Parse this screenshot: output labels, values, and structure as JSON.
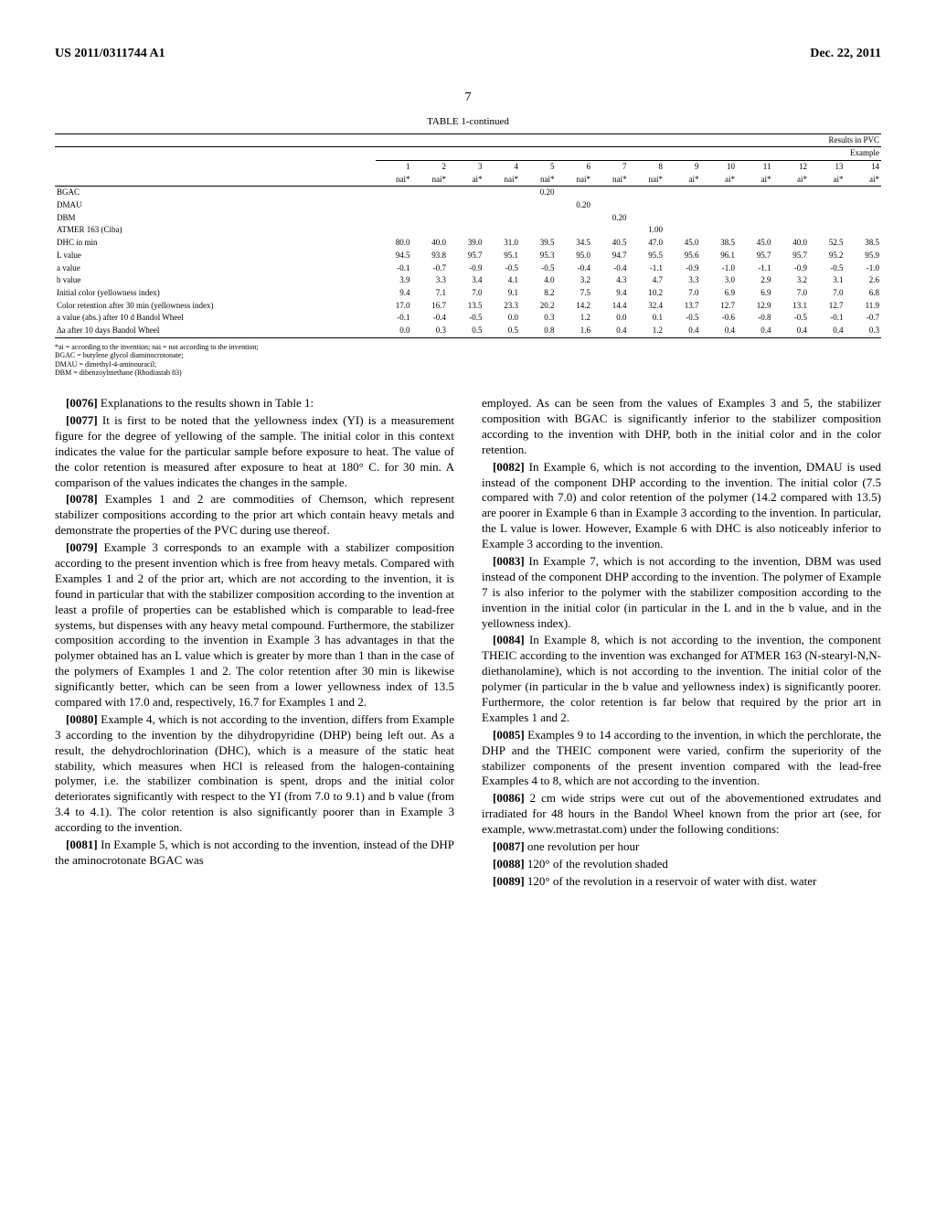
{
  "header": {
    "left": "US 2011/0311744 A1",
    "right": "Dec. 22, 2011"
  },
  "page_number": "7",
  "table": {
    "title": "TABLE 1-continued",
    "section_title": "Results in PVC",
    "example_header": "Example",
    "columns": [
      {
        "num": "1",
        "note": "nai*"
      },
      {
        "num": "2",
        "note": "nai*"
      },
      {
        "num": "3",
        "note": "ai*"
      },
      {
        "num": "4",
        "note": "nai*"
      },
      {
        "num": "5",
        "note": "nai*"
      },
      {
        "num": "6",
        "note": "nai*"
      },
      {
        "num": "7",
        "note": "nai*"
      },
      {
        "num": "8",
        "note": "nai*"
      },
      {
        "num": "9",
        "note": "ai*"
      },
      {
        "num": "10",
        "note": "ai*"
      },
      {
        "num": "11",
        "note": "ai*"
      },
      {
        "num": "12",
        "note": "ai*"
      },
      {
        "num": "13",
        "note": "ai*"
      },
      {
        "num": "14",
        "note": "ai*"
      }
    ],
    "rows": [
      {
        "label": "BGAC",
        "values": [
          "",
          "",
          "",
          "",
          "0.20",
          "",
          "",
          "",
          "",
          "",
          "",
          "",
          "",
          ""
        ]
      },
      {
        "label": "DMAU",
        "values": [
          "",
          "",
          "",
          "",
          "",
          "0.20",
          "",
          "",
          "",
          "",
          "",
          "",
          "",
          ""
        ]
      },
      {
        "label": "DBM",
        "values": [
          "",
          "",
          "",
          "",
          "",
          "",
          "0.20",
          "",
          "",
          "",
          "",
          "",
          "",
          ""
        ]
      },
      {
        "label": "ATMER 163 (Ciba)",
        "values": [
          "",
          "",
          "",
          "",
          "",
          "",
          "",
          "1.00",
          "",
          "",
          "",
          "",
          "",
          ""
        ]
      },
      {
        "label": "DHC in min",
        "values": [
          "80.0",
          "40.0",
          "39.0",
          "31.0",
          "39.5",
          "34.5",
          "40.5",
          "47.0",
          "45.0",
          "38.5",
          "45.0",
          "40.0",
          "52.5",
          "38.5"
        ]
      },
      {
        "label": "L value",
        "values": [
          "94.5",
          "93.8",
          "95.7",
          "95.1",
          "95.3",
          "95.0",
          "94.7",
          "95.5",
          "95.6",
          "96.1",
          "95.7",
          "95.7",
          "95.2",
          "95.9"
        ]
      },
      {
        "label": "a value",
        "values": [
          "-0.1",
          "-0.7",
          "-0.9",
          "-0.5",
          "-0.5",
          "-0.4",
          "-0.4",
          "-1.1",
          "-0.9",
          "-1.0",
          "-1.1",
          "-0.9",
          "-0.5",
          "-1.0"
        ]
      },
      {
        "label": "b value",
        "values": [
          "3.9",
          "3.3",
          "3.4",
          "4.1",
          "4.0",
          "3.2",
          "4.3",
          "4.7",
          "3.3",
          "3.0",
          "2.9",
          "3.2",
          "3.1",
          "2.6"
        ]
      },
      {
        "label": "Initial color (yellowness index)",
        "values": [
          "9.4",
          "7.1",
          "7.0",
          "9.1",
          "8.2",
          "7.5",
          "9.4",
          "10.2",
          "7.0",
          "6.9",
          "6.9",
          "7.0",
          "7.0",
          "6.8"
        ]
      },
      {
        "label": "Color retention after 30 min (yellowness index)",
        "values": [
          "17.0",
          "16.7",
          "13.5",
          "23.3",
          "20.2",
          "14.2",
          "14.4",
          "32.4",
          "13.7",
          "12.7",
          "12.9",
          "13.1",
          "12.7",
          "11.9"
        ]
      },
      {
        "label": "a value (abs.) after 10 d Bandol Wheel",
        "values": [
          "-0.1",
          "-0.4",
          "-0.5",
          "0.0",
          "0.3",
          "1.2",
          "0.0",
          "0.1",
          "-0.5",
          "-0.6",
          "-0.8",
          "-0.5",
          "-0.1",
          "-0.7"
        ]
      },
      {
        "label": "Δa after 10 days Bandol Wheel",
        "values": [
          "0.0",
          "0.3",
          "0.5",
          "0.5",
          "0.8",
          "1.6",
          "0.4",
          "1.2",
          "0.4",
          "0.4",
          "0.4",
          "0.4",
          "0.4",
          "0.3"
        ]
      }
    ]
  },
  "footnotes": {
    "line1": "*ai = according to the invention; nai = not according to the invention;",
    "line2": "BGAC = butylene glycol diaminocrotonate;",
    "line3": "DMAU = dimethyl-4-aminouracil;",
    "line4": "DBM = dibenzoylmethane (Rhodiastab 83)"
  },
  "paragraphs": {
    "p0076": {
      "num": "[0076]",
      "text": "Explanations to the results shown in Table 1:"
    },
    "p0077": {
      "num": "[0077]",
      "text": "It is first to be noted that the yellowness index (YI) is a measurement figure for the degree of yellowing of the sample. The initial color in this context indicates the value for the particular sample before exposure to heat. The value of the color retention is measured after exposure to heat at 180° C. for 30 min. A comparison of the values indicates the changes in the sample."
    },
    "p0078": {
      "num": "[0078]",
      "text": "Examples 1 and 2 are commodities of Chemson, which represent stabilizer compositions according to the prior art which contain heavy metals and demonstrate the properties of the PVC during use thereof."
    },
    "p0079": {
      "num": "[0079]",
      "text": "Example 3 corresponds to an example with a stabilizer composition according to the present invention which is free from heavy metals. Compared with Examples 1 and 2 of the prior art, which are not according to the invention, it is found in particular that with the stabilizer composition according to the invention at least a profile of properties can be established which is comparable to lead-free systems, but dispenses with any heavy metal compound. Furthermore, the stabilizer composition according to the invention in Example 3 has advantages in that the polymer obtained has an L value which is greater by more than 1 than in the case of the polymers of Examples 1 and 2. The color retention after 30 min is likewise significantly better, which can be seen from a lower yellowness index of 13.5 compared with 17.0 and, respectively, 16.7 for Examples 1 and 2."
    },
    "p0080": {
      "num": "[0080]",
      "text": "Example 4, which is not according to the invention, differs from Example 3 according to the invention by the dihydropyridine (DHP) being left out. As a result, the dehydrochlorination (DHC), which is a measure of the static heat stability, which measures when HCl is released from the halogen-containing polymer, i.e. the stabilizer combination is spent, drops and the initial color deteriorates significantly with respect to the YI (from 7.0 to 9.1) and b value (from 3.4 to 4.1). The color retention is also significantly poorer than in Example 3 according to the invention."
    },
    "p0081": {
      "num": "[0081]",
      "text": "In Example 5, which is not according to the invention, instead of the DHP the aminocrotonate BGAC was"
    },
    "p0081b": {
      "text": "employed. As can be seen from the values of Examples 3 and 5, the stabilizer composition with BGAC is significantly inferior to the stabilizer composition according to the invention with DHP, both in the initial color and in the color retention."
    },
    "p0082": {
      "num": "[0082]",
      "text": "In Example 6, which is not according to the invention, DMAU is used instead of the component DHP according to the invention. The initial color (7.5 compared with 7.0) and color retention of the polymer (14.2 compared with 13.5) are poorer in Example 6 than in Example 3 according to the invention. In particular, the L value is lower. However, Example 6 with DHC is also noticeably inferior to Example 3 according to the invention."
    },
    "p0083": {
      "num": "[0083]",
      "text": "In Example 7, which is not according to the invention, DBM was used instead of the component DHP according to the invention. The polymer of Example 7 is also inferior to the polymer with the stabilizer composition according to the invention in the initial color (in particular in the L and in the b value, and in the yellowness index)."
    },
    "p0084": {
      "num": "[0084]",
      "text": "In Example 8, which is not according to the invention, the component THEIC according to the invention was exchanged for ATMER 163 (N-stearyl-N,N-diethanolamine), which is not according to the invention. The initial color of the polymer (in particular in the b value and yellowness index) is significantly poorer. Furthermore, the color retention is far below that required by the prior art in Examples 1 and 2."
    },
    "p0085": {
      "num": "[0085]",
      "text": "Examples 9 to 14 according to the invention, in which the perchlorate, the DHP and the THEIC component were varied, confirm the superiority of the stabilizer components of the present invention compared with the lead-free Examples 4 to 8, which are not according to the invention."
    },
    "p0086": {
      "num": "[0086]",
      "text": "2 cm wide strips were cut out of the abovementioned extrudates and irradiated for 48 hours in the Bandol Wheel known from the prior art (see, for example, www.metrastat.com) under the following conditions:"
    },
    "p0087": {
      "num": "[0087]",
      "text": "one revolution per hour"
    },
    "p0088": {
      "num": "[0088]",
      "text": "120° of the revolution shaded"
    },
    "p0089": {
      "num": "[0089]",
      "text": "120° of the revolution in a reservoir of water with dist. water"
    }
  }
}
